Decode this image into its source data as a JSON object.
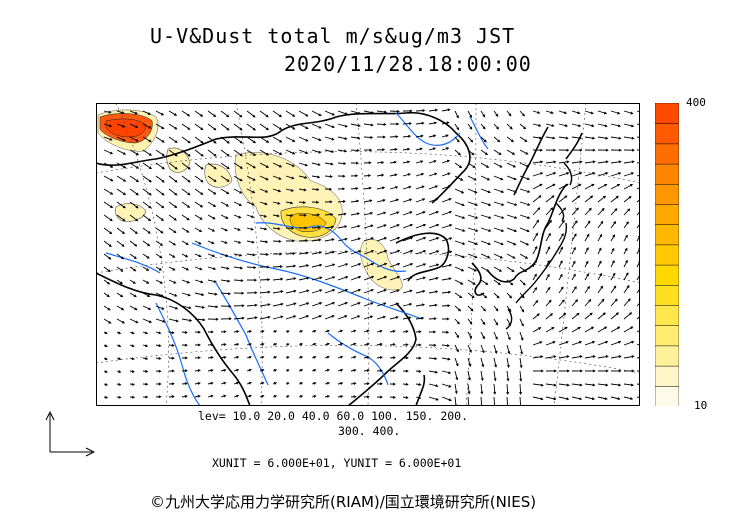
{
  "title": {
    "line1": "U-V&Dust total m/s&ug/m3 JST",
    "line2": "2020/11/28.18:00:00"
  },
  "colorbar": {
    "max_label": "400",
    "min_label": "10",
    "colors": [
      "#fffbe8",
      "#fff5c6",
      "#fff09a",
      "#ffec70",
      "#ffe64a",
      "#ffe020",
      "#ffd800",
      "#ffc800",
      "#ffb800",
      "#ffa800",
      "#ff9800",
      "#ff8400",
      "#ff6e00",
      "#ff5a00",
      "#ff4a00"
    ]
  },
  "levels": {
    "line1": "lev= 10.0 20.0 40.0 60.0 100. 150. 200.",
    "line2": "300. 400.",
    "values": [
      10.0,
      20.0,
      40.0,
      60.0,
      100.0,
      150.0,
      200.0,
      300.0,
      400.0
    ]
  },
  "units_text": "XUNIT = 6.000E+01, YUNIT = 6.000E+01",
  "credit": "©九州大学応用力学研究所(RIAM)/国立環境研究所(NIES)",
  "map": {
    "coast_color": "#000000",
    "river_color": "#1a6cff",
    "dust_fill": "#fff3b8",
    "dust_hot": "#ff5a10"
  }
}
